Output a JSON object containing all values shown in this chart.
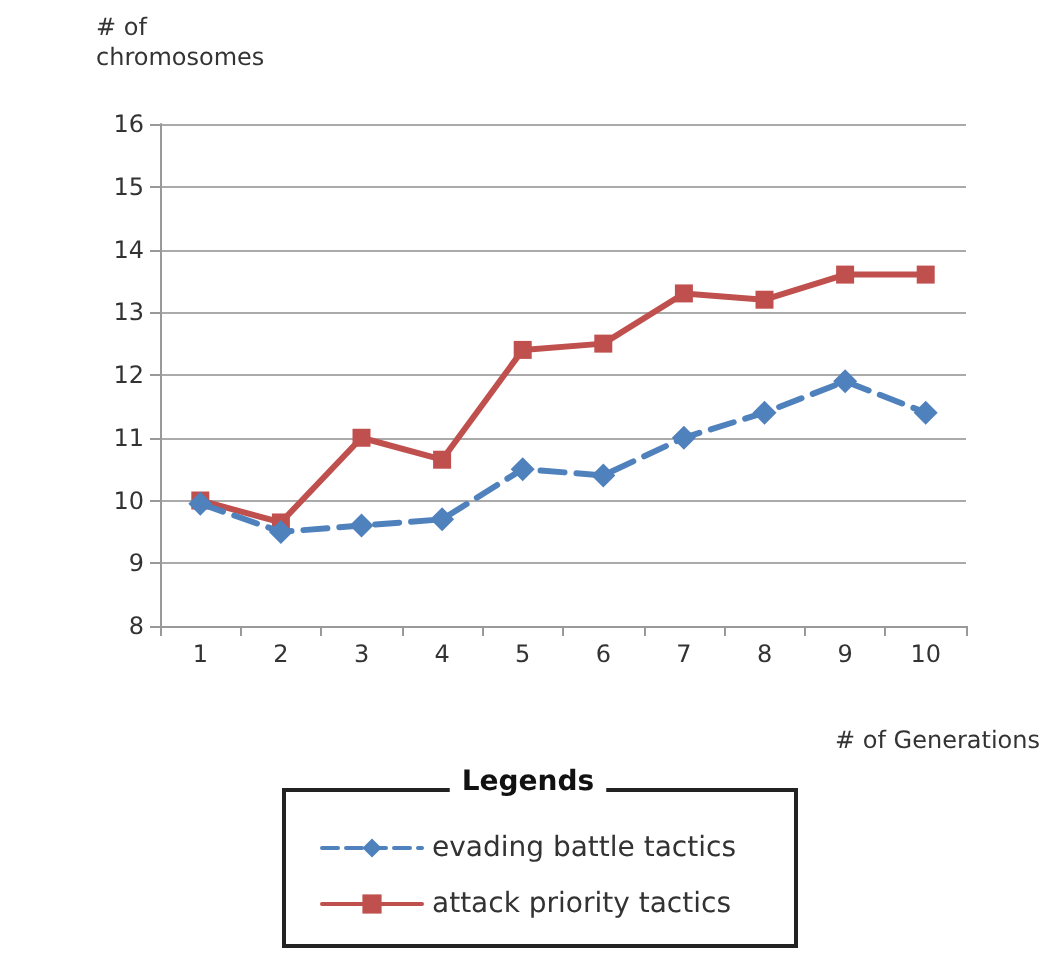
{
  "chart_data": {
    "type": "line",
    "xlabel": "# of Generations",
    "ylabel": "# of\nchromosomes",
    "legend_title": "Legends",
    "categories": [
      "1",
      "2",
      "3",
      "4",
      "5",
      "6",
      "7",
      "8",
      "9",
      "10"
    ],
    "series": [
      {
        "name": "evading battle tactics",
        "color": "#4f81bd",
        "marker": "diamond",
        "line_style": "dashed",
        "values": [
          9.95,
          9.5,
          9.6,
          9.7,
          10.5,
          10.4,
          11.0,
          11.4,
          11.9,
          11.4
        ]
      },
      {
        "name": "attack priority tactics",
        "color": "#c0504d",
        "marker": "square",
        "line_style": "solid",
        "values": [
          10.0,
          9.65,
          11.0,
          10.65,
          12.4,
          12.5,
          13.3,
          13.2,
          13.6,
          13.6
        ]
      }
    ],
    "ylim": [
      8,
      16
    ],
    "yticks": [
      8,
      9,
      10,
      11,
      12,
      13,
      14,
      15,
      16
    ],
    "grid": "y",
    "legend": "bottom"
  }
}
